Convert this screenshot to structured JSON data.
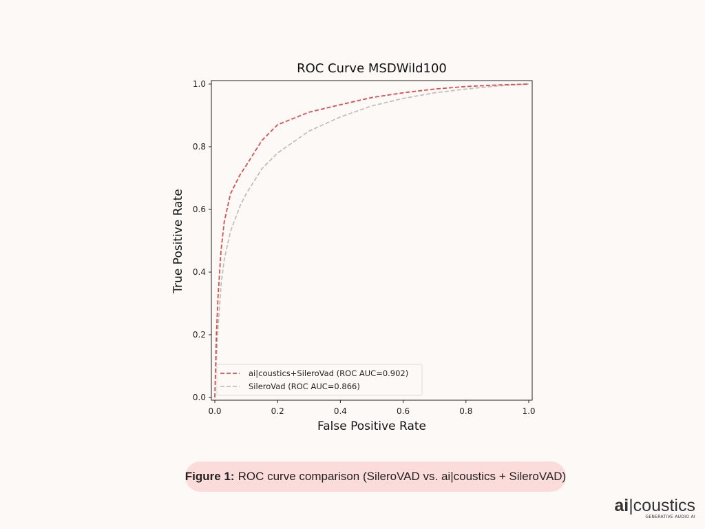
{
  "chart_data": {
    "type": "line",
    "title": "ROC Curve MSDWild100",
    "xlabel": "False Positive Rate",
    "ylabel": "True Positive Rate",
    "xlim": [
      0,
      1
    ],
    "ylim": [
      0,
      1
    ],
    "xticks": [
      "0.0",
      "0.2",
      "0.4",
      "0.6",
      "0.8",
      "1.0"
    ],
    "yticks": [
      "0.0",
      "0.2",
      "0.4",
      "0.6",
      "0.8",
      "1.0"
    ],
    "legend_position": "lower-left",
    "series": [
      {
        "name": "ai|coustics+SileroVad (ROC AUC=0.902)",
        "color": "#d9504f",
        "x": [
          0,
          0.005,
          0.01,
          0.02,
          0.03,
          0.05,
          0.08,
          0.1,
          0.15,
          0.2,
          0.3,
          0.4,
          0.5,
          0.6,
          0.7,
          0.8,
          0.9,
          1.0
        ],
        "y": [
          0,
          0.2,
          0.32,
          0.47,
          0.56,
          0.65,
          0.71,
          0.74,
          0.82,
          0.87,
          0.91,
          0.934,
          0.957,
          0.972,
          0.984,
          0.992,
          0.997,
          1.0
        ]
      },
      {
        "name": "SileroVad (ROC AUC=0.866)",
        "color": "#c4bebb",
        "x": [
          0,
          0.005,
          0.01,
          0.02,
          0.03,
          0.05,
          0.08,
          0.1,
          0.15,
          0.2,
          0.3,
          0.4,
          0.5,
          0.6,
          0.7,
          0.8,
          0.9,
          1.0
        ],
        "y": [
          0,
          0.12,
          0.22,
          0.36,
          0.44,
          0.53,
          0.61,
          0.65,
          0.73,
          0.78,
          0.85,
          0.895,
          0.93,
          0.954,
          0.972,
          0.984,
          0.994,
          1.0
        ]
      }
    ]
  },
  "caption": {
    "bold": "Figure 1:",
    "text": "ROC curve comparison (SileroVAD vs. ai|coustics + SileroVAD)"
  },
  "logo": {
    "bold": "ai",
    "rest": "|coustics",
    "tagline": "GENERATIVE AUDIO AI"
  }
}
